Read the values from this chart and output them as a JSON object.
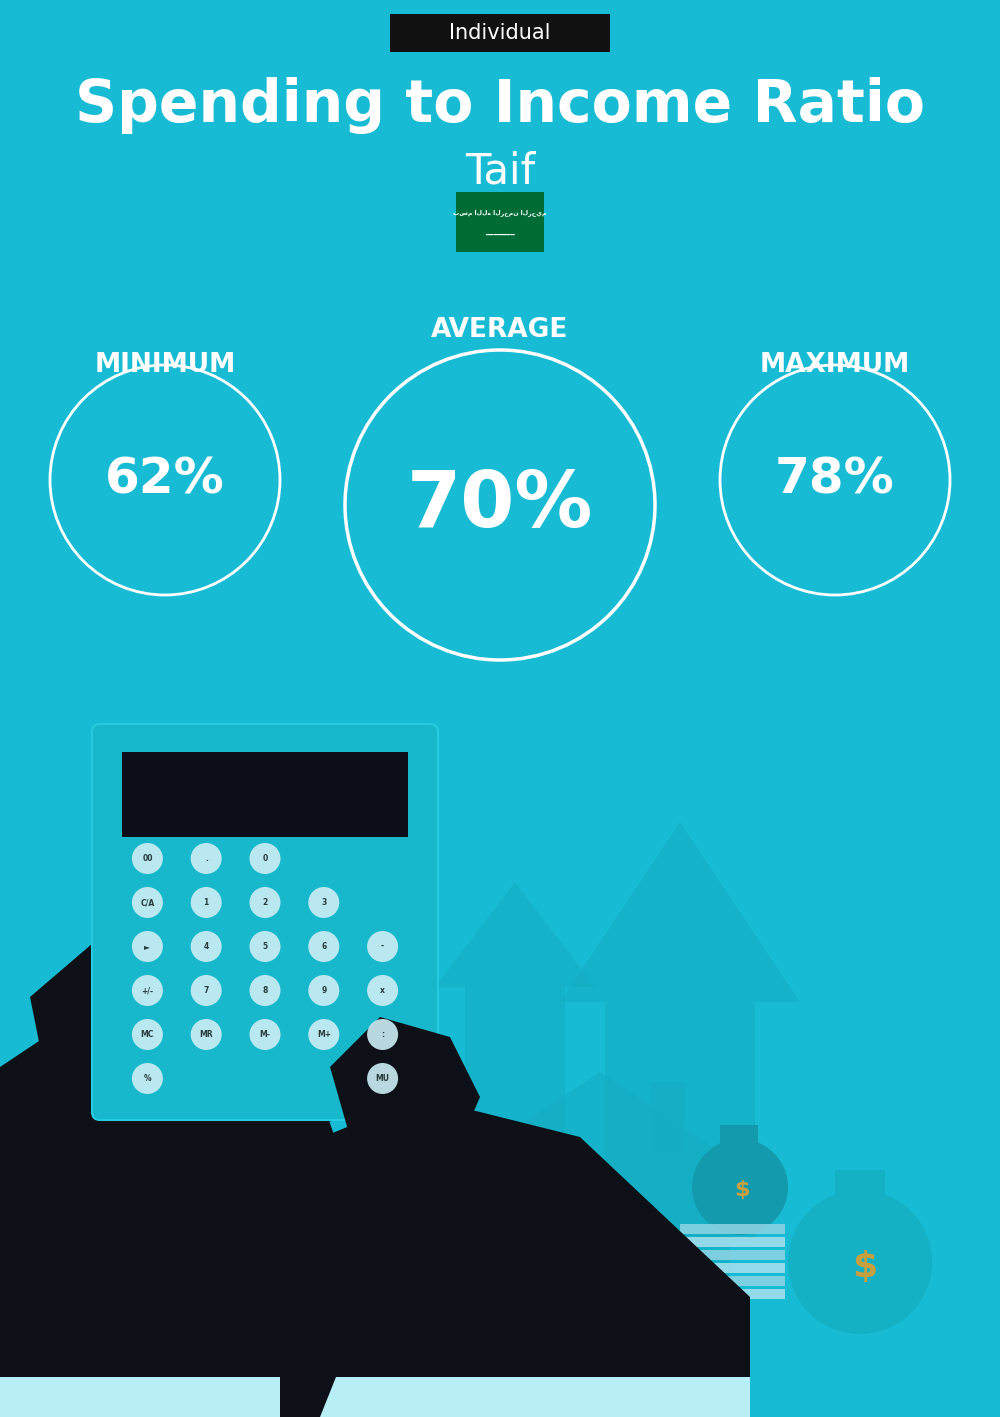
{
  "title": "Spending to Income Ratio",
  "subtitle": "Taif",
  "tag_text": "Individual",
  "tag_bg": "#111111",
  "tag_text_color": "#ffffff",
  "bg_color": "#17bcd4",
  "min_label": "MINIMUM",
  "avg_label": "AVERAGE",
  "max_label": "MAXIMUM",
  "min_value": "62%",
  "avg_value": "70%",
  "max_value": "78%",
  "circle_color": "#ffffff",
  "text_color": "#ffffff",
  "title_fontsize": 42,
  "subtitle_fontsize": 30,
  "label_fontsize": 19,
  "value_fontsize_small": 36,
  "value_fontsize_large": 56,
  "sa_flag_green": "#006c35",
  "sa_flag_white": "#ffffff",
  "arrow_color": "#14adc2",
  "house_color": "#14adc2",
  "calc_body": "#18b8cc",
  "calc_screen": "#0d0d1a",
  "hand_color": "#0d1117",
  "cuff_color": "#b8eef5",
  "btn_color": "#cceef5",
  "money_color": "#14b0c4",
  "dollar_color": "#c8a040"
}
